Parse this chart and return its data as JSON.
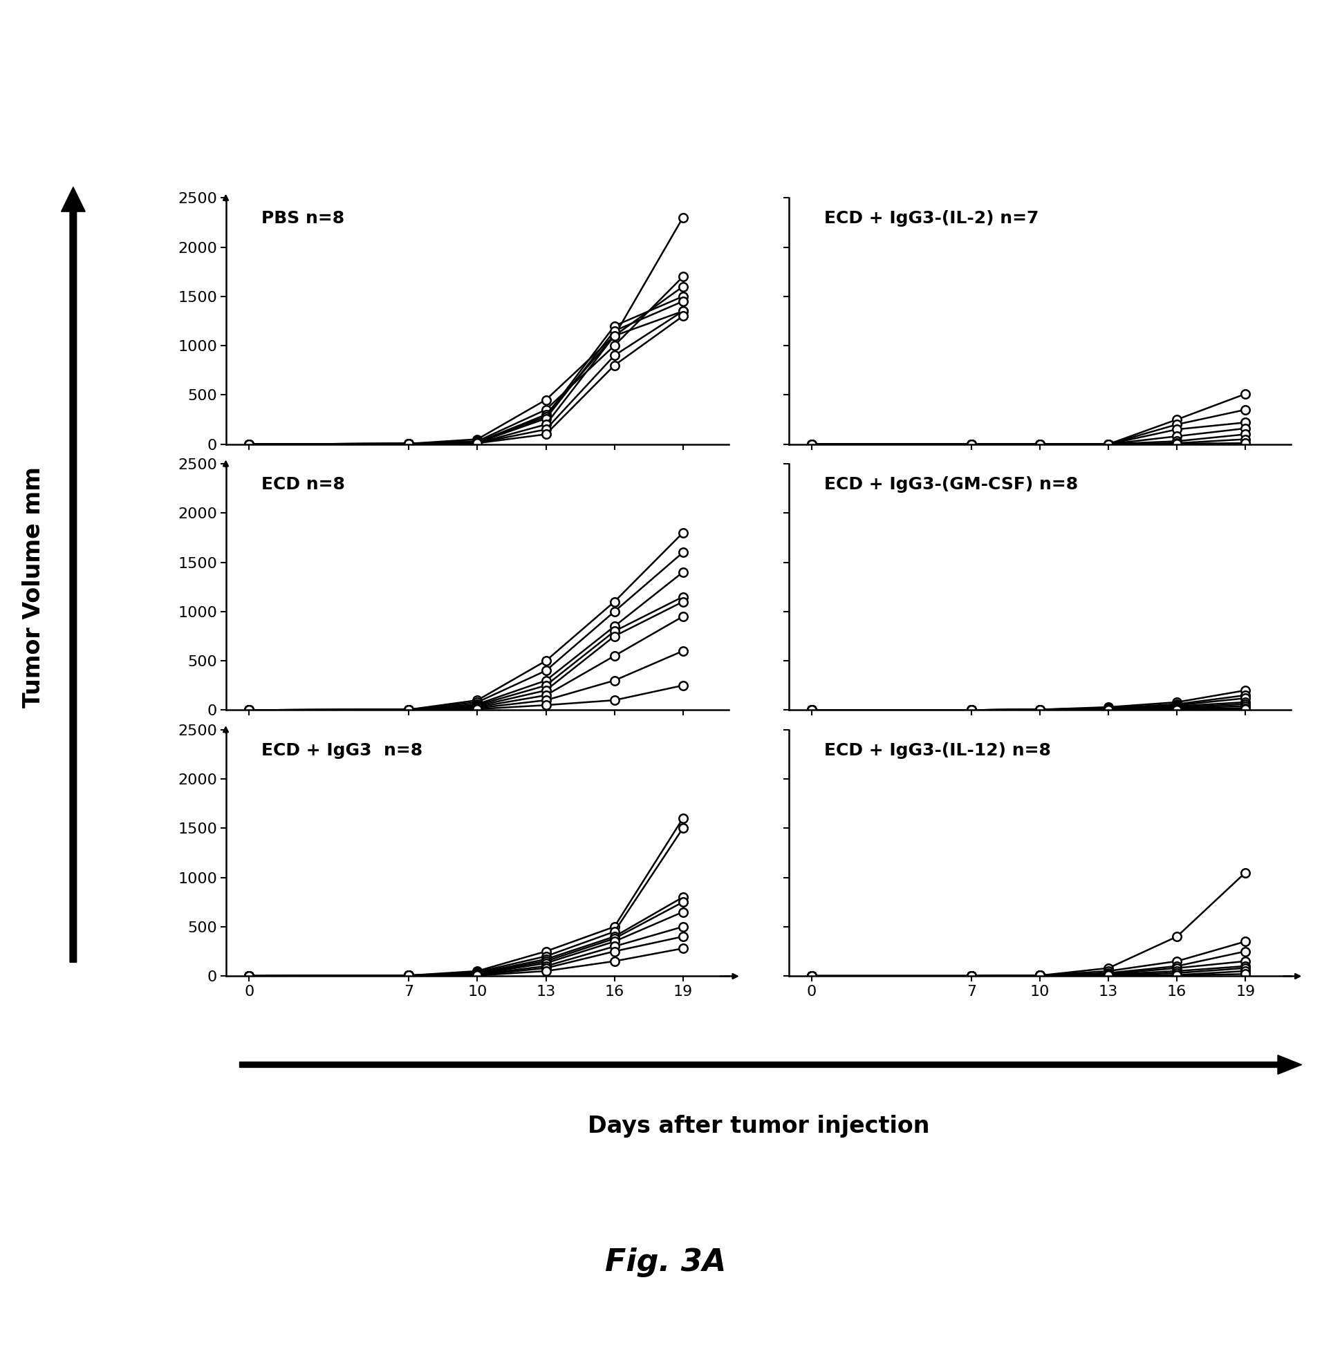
{
  "x_days": [
    0,
    7,
    10,
    13,
    16,
    19
  ],
  "panels": [
    {
      "title": "PBS n=8",
      "row": 0,
      "col": 0,
      "series": [
        [
          0,
          5,
          50,
          450,
          1100,
          2300
        ],
        [
          0,
          5,
          30,
          350,
          1000,
          1700
        ],
        [
          0,
          5,
          20,
          300,
          1100,
          1600
        ],
        [
          0,
          5,
          20,
          280,
          1200,
          1500
        ],
        [
          0,
          5,
          15,
          260,
          1150,
          1450
        ],
        [
          0,
          5,
          10,
          200,
          1100,
          1350
        ],
        [
          0,
          5,
          10,
          150,
          900,
          1350
        ],
        [
          0,
          5,
          10,
          100,
          800,
          1300
        ]
      ],
      "ylim": [
        0,
        2500
      ],
      "yticks": [
        0,
        500,
        1000,
        1500,
        2000,
        2500
      ]
    },
    {
      "title": "ECD + IgG3-(IL-2) n=7",
      "row": 0,
      "col": 1,
      "series": [
        [
          0,
          0,
          0,
          0,
          250,
          510
        ],
        [
          0,
          0,
          0,
          0,
          200,
          350
        ],
        [
          0,
          0,
          0,
          0,
          150,
          220
        ],
        [
          0,
          0,
          0,
          0,
          80,
          160
        ],
        [
          0,
          0,
          0,
          0,
          30,
          100
        ],
        [
          0,
          0,
          0,
          0,
          10,
          50
        ],
        [
          0,
          0,
          0,
          0,
          5,
          10
        ]
      ],
      "ylim": [
        0,
        2500
      ],
      "yticks": [
        0,
        500,
        1000,
        1500,
        2000,
        2500
      ]
    },
    {
      "title": "ECD n=8",
      "row": 1,
      "col": 0,
      "series": [
        [
          0,
          5,
          100,
          500,
          1100,
          1800
        ],
        [
          0,
          5,
          80,
          400,
          1000,
          1600
        ],
        [
          0,
          5,
          60,
          300,
          850,
          1400
        ],
        [
          0,
          5,
          50,
          250,
          800,
          1150
        ],
        [
          0,
          5,
          40,
          200,
          750,
          1100
        ],
        [
          0,
          5,
          30,
          150,
          550,
          950
        ],
        [
          0,
          5,
          20,
          100,
          300,
          600
        ],
        [
          0,
          5,
          10,
          50,
          100,
          250
        ]
      ],
      "ylim": [
        0,
        2500
      ],
      "yticks": [
        0,
        500,
        1000,
        1500,
        2000,
        2500
      ]
    },
    {
      "title": "ECD + IgG3-(GM-CSF) n=8",
      "row": 1,
      "col": 1,
      "series": [
        [
          0,
          0,
          5,
          30,
          80,
          200
        ],
        [
          0,
          0,
          5,
          20,
          60,
          150
        ],
        [
          0,
          0,
          5,
          20,
          50,
          120
        ],
        [
          0,
          0,
          5,
          15,
          40,
          80
        ],
        [
          0,
          0,
          5,
          10,
          30,
          60
        ],
        [
          0,
          0,
          5,
          10,
          20,
          40
        ],
        [
          0,
          0,
          5,
          10,
          10,
          20
        ],
        [
          0,
          0,
          5,
          5,
          5,
          10
        ]
      ],
      "ylim": [
        0,
        2500
      ],
      "yticks": [
        0,
        500,
        1000,
        1500,
        2000,
        2500
      ]
    },
    {
      "title": "ECD + IgG3  n=8",
      "row": 2,
      "col": 0,
      "series": [
        [
          0,
          5,
          50,
          250,
          500,
          1600
        ],
        [
          0,
          5,
          40,
          200,
          450,
          1500
        ],
        [
          0,
          5,
          30,
          170,
          400,
          800
        ],
        [
          0,
          5,
          25,
          150,
          380,
          750
        ],
        [
          0,
          5,
          20,
          130,
          350,
          650
        ],
        [
          0,
          5,
          15,
          100,
          300,
          500
        ],
        [
          0,
          5,
          10,
          80,
          250,
          400
        ],
        [
          0,
          5,
          5,
          50,
          150,
          280
        ]
      ],
      "ylim": [
        0,
        2500
      ],
      "yticks": [
        0,
        500,
        1000,
        1500,
        2000,
        2500
      ]
    },
    {
      "title": "ECD + IgG3-(IL-12) n=8",
      "row": 2,
      "col": 1,
      "series": [
        [
          0,
          0,
          5,
          80,
          400,
          1050
        ],
        [
          0,
          0,
          5,
          50,
          150,
          350
        ],
        [
          0,
          0,
          5,
          30,
          100,
          250
        ],
        [
          0,
          0,
          5,
          20,
          80,
          150
        ],
        [
          0,
          0,
          5,
          15,
          50,
          100
        ],
        [
          0,
          0,
          5,
          10,
          30,
          80
        ],
        [
          0,
          0,
          5,
          5,
          10,
          50
        ],
        [
          0,
          0,
          5,
          5,
          5,
          20
        ]
      ],
      "ylim": [
        0,
        2500
      ],
      "yticks": [
        0,
        500,
        1000,
        1500,
        2000,
        2500
      ]
    }
  ],
  "xlabel": "Days after tumor injection",
  "ylabel": "Tumor Volume mm",
  "fig_title": "Fig. 3A",
  "line_color": "#000000",
  "marker_color": "#ffffff",
  "marker_edge_color": "#000000",
  "background_color": "#ffffff",
  "title_fontsize": 18,
  "label_fontsize": 24,
  "tick_fontsize": 16,
  "fig_label_fontsize": 32
}
